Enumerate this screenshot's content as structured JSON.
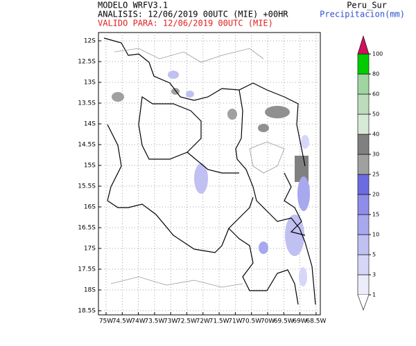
{
  "header": {
    "model": "MODELO WRFV3.1",
    "analysis": "ANALISIS: 12/06/2019 00UTC (MIE) +00HR",
    "valid": "VALIDO PARA: 12/06/2019 00UTC (MIE)",
    "region": "Peru_Sur",
    "variable": "Precipitacion(mm)"
  },
  "map": {
    "lat_labels": [
      "12S",
      "12.5S",
      "13S",
      "13.5S",
      "14S",
      "14.5S",
      "15S",
      "15.5S",
      "16S",
      "16.5S",
      "17S",
      "17.5S",
      "18S",
      "18.5S"
    ],
    "lon_labels": [
      "75W",
      "74.5W",
      "74W",
      "73.5W",
      "73W",
      "72.5W",
      "72W",
      "71.5W",
      "71W",
      "70.5W",
      "70W",
      "69.5W",
      "69W",
      "68.5W"
    ]
  },
  "colorbar": {
    "ticks": [
      1,
      3,
      5,
      10,
      15,
      20,
      25,
      30,
      40,
      50,
      60,
      80,
      100
    ],
    "colors": [
      "#ececfc",
      "#d6d6f8",
      "#c0c0f2",
      "#a8a8ee",
      "#8e8ee8",
      "#6c6ce0",
      "#a0a0a0",
      "#808080",
      "#d6e8d6",
      "#bcdcbc",
      "#a0d4a0",
      "#00cc00"
    ],
    "top_color": "#d0105a"
  }
}
